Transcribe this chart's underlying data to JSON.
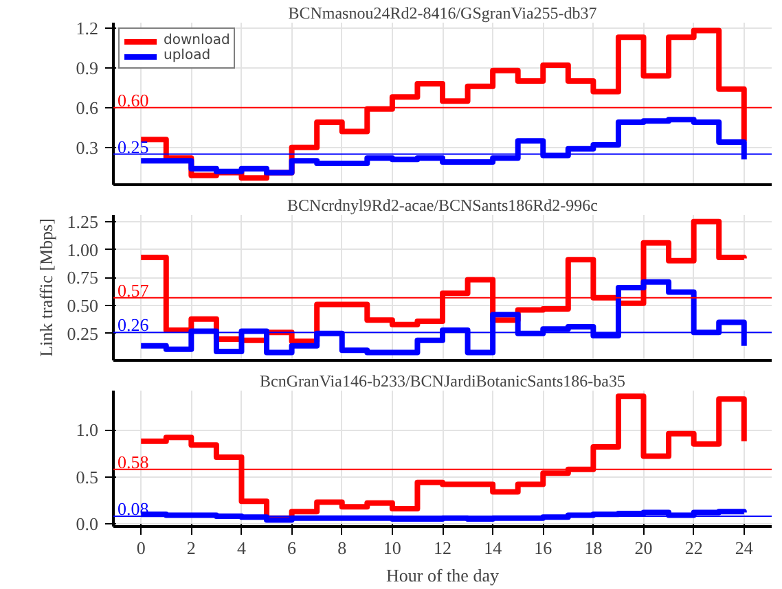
{
  "chart_data": [
    {
      "type": "step",
      "title": "BCNmasnou24Rd2-8416/GSgranVia255-db37",
      "x": [
        0,
        1,
        2,
        3,
        4,
        5,
        6,
        7,
        8,
        9,
        10,
        11,
        12,
        13,
        14,
        15,
        16,
        17,
        18,
        19,
        20,
        21,
        22,
        23,
        24
      ],
      "series": [
        {
          "name": "download",
          "color": "#ff0000",
          "values": [
            0.36,
            0.22,
            0.09,
            0.11,
            0.07,
            0.11,
            0.3,
            0.49,
            0.42,
            0.59,
            0.68,
            0.78,
            0.65,
            0.76,
            0.88,
            0.8,
            0.92,
            0.8,
            0.72,
            1.13,
            0.84,
            1.13,
            1.18,
            0.74,
            0.35
          ]
        },
        {
          "name": "upload",
          "color": "#0000ff",
          "values": [
            0.2,
            0.2,
            0.14,
            0.12,
            0.14,
            0.11,
            0.2,
            0.18,
            0.18,
            0.22,
            0.21,
            0.22,
            0.19,
            0.19,
            0.22,
            0.35,
            0.24,
            0.29,
            0.32,
            0.49,
            0.5,
            0.51,
            0.49,
            0.34,
            0.21
          ]
        }
      ],
      "xlim": [
        -1.1,
        25.1
      ],
      "xticks": [
        0,
        2,
        4,
        6,
        8,
        10,
        12,
        14,
        16,
        18,
        20,
        22,
        24
      ],
      "ylim": [
        0.02,
        1.24
      ],
      "yticks": [
        {
          "value": 0.3,
          "label": "0.3"
        },
        {
          "value": 0.6,
          "label": "0.6"
        },
        {
          "value": 0.9,
          "label": "0.9"
        },
        {
          "value": 1.2,
          "label": "1.2"
        }
      ],
      "ref_lines": [
        {
          "axis": "y",
          "value": 0.6,
          "label": "0.60",
          "color": "#ff0000"
        },
        {
          "axis": "y",
          "value": 0.25,
          "label": "0.25",
          "color": "#0000ff"
        }
      ],
      "grid": true,
      "legend": "top left",
      "tick_labels": "y",
      "line_style": "solid",
      "marker": "none"
    },
    {
      "type": "step",
      "title": "BCNcrdnyl9Rd2-acae/BCNSants186Rd2-996c",
      "ylabel": "Link traffic [Mbps]",
      "x": [
        0,
        1,
        2,
        3,
        4,
        5,
        6,
        7,
        8,
        9,
        10,
        11,
        12,
        13,
        14,
        15,
        16,
        17,
        18,
        19,
        20,
        21,
        22,
        23,
        24
      ],
      "series": [
        {
          "color": "#ff0000",
          "values": [
            0.93,
            0.28,
            0.38,
            0.2,
            0.19,
            0.26,
            0.18,
            0.51,
            0.51,
            0.37,
            0.33,
            0.36,
            0.61,
            0.73,
            0.37,
            0.46,
            0.47,
            0.91,
            0.57,
            0.52,
            1.06,
            0.9,
            1.25,
            0.93,
            0.92
          ]
        },
        {
          "color": "#0000ff",
          "values": [
            0.14,
            0.11,
            0.27,
            0.09,
            0.27,
            0.08,
            0.14,
            0.25,
            0.1,
            0.08,
            0.08,
            0.19,
            0.28,
            0.08,
            0.42,
            0.25,
            0.29,
            0.31,
            0.23,
            0.66,
            0.71,
            0.62,
            0.26,
            0.35,
            0.14
          ]
        }
      ],
      "xlim": [
        -1.1,
        25.1
      ],
      "xticks": [
        0,
        2,
        4,
        6,
        8,
        10,
        12,
        14,
        16,
        18,
        20,
        22,
        24
      ],
      "ylim": [
        0.01,
        1.31
      ],
      "yticks": [
        {
          "value": 0.25,
          "label": "0.25"
        },
        {
          "value": 0.5,
          "label": "0.50"
        },
        {
          "value": 0.75,
          "label": "0.75"
        },
        {
          "value": 1.0,
          "label": "1.00"
        },
        1.25
      ],
      "ref_lines": [
        {
          "axis": "y",
          "value": 0.57,
          "label": "0.57",
          "color": "#ff0000"
        },
        {
          "axis": "y",
          "value": 0.26,
          "label": "0.26",
          "color": "#0000ff"
        }
      ],
      "grid": true,
      "tick_labels": "y",
      "line_style": "solid",
      "marker": "none"
    },
    {
      "type": "step",
      "title": "BcnGranVia146-b233/BCNJardiBotanicSants186-ba35",
      "xlabel": "Hour of the day",
      "x": [
        0,
        1,
        2,
        3,
        4,
        5,
        6,
        7,
        8,
        9,
        10,
        11,
        12,
        13,
        14,
        15,
        16,
        17,
        18,
        19,
        20,
        21,
        22,
        23,
        24
      ],
      "series": [
        {
          "color": "#ff0000",
          "values": [
            0.88,
            0.92,
            0.84,
            0.71,
            0.24,
            0.06,
            0.13,
            0.23,
            0.18,
            0.22,
            0.16,
            0.44,
            0.42,
            0.42,
            0.34,
            0.42,
            0.54,
            0.58,
            0.82,
            1.36,
            0.72,
            0.96,
            0.85,
            1.33,
            0.88
          ]
        },
        {
          "color": "#0000ff",
          "values": [
            0.1,
            0.09,
            0.09,
            0.08,
            0.07,
            0.04,
            0.06,
            0.06,
            0.06,
            0.06,
            0.05,
            0.05,
            0.06,
            0.05,
            0.06,
            0.06,
            0.07,
            0.09,
            0.1,
            0.11,
            0.12,
            0.09,
            0.12,
            0.13,
            0.12
          ]
        }
      ],
      "xlim": [
        -1.1,
        25.1
      ],
      "xticks": [
        0,
        2,
        4,
        6,
        8,
        10,
        12,
        14,
        16,
        18,
        20,
        22,
        24
      ],
      "ylim": [
        -0.03,
        1.42
      ],
      "yticks": [
        {
          "value": 0,
          "label": "0.0"
        },
        {
          "value": 0.5,
          "label": "0.5"
        },
        {
          "value": 1.0,
          "label": "1.0"
        }
      ],
      "ref_lines": [
        {
          "axis": "y",
          "value": 0.58,
          "label": "0.58",
          "color": "#ff0000"
        },
        {
          "axis": "y",
          "value": 0.08,
          "label": "0.08",
          "color": "#0000ff"
        }
      ],
      "grid": true,
      "line_style": "solid",
      "marker": "none"
    }
  ]
}
